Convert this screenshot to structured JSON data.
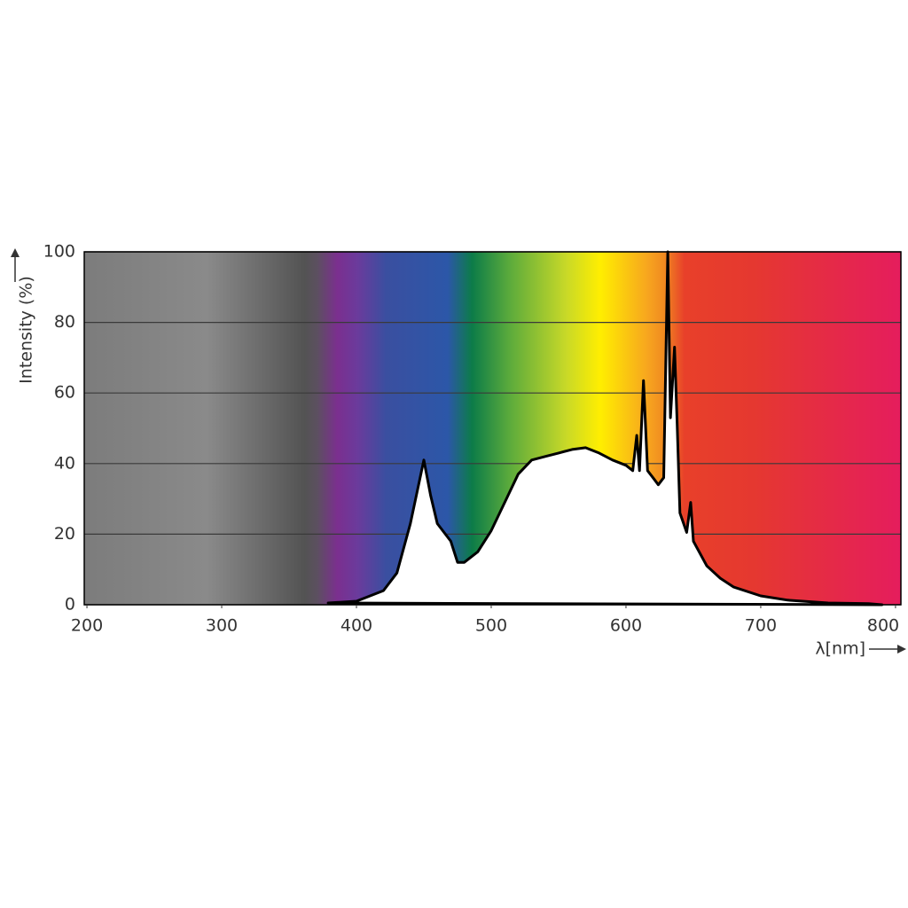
{
  "chart_data": {
    "type": "area",
    "y_label": "Intensity (%)",
    "x_label": "λ[nm]",
    "xlim": [
      198,
      804
    ],
    "ylim": [
      0,
      100
    ],
    "xticks": [
      200,
      300,
      400,
      500,
      600,
      700,
      800
    ],
    "yticks": [
      0,
      20,
      40,
      60,
      80,
      100
    ],
    "grid": true,
    "series": [
      {
        "color": "#000000",
        "x": [
          379,
          400,
          420,
          430,
          440,
          450,
          455,
          460,
          470,
          475,
          480,
          490,
          500,
          510,
          520,
          530,
          540,
          550,
          560,
          570,
          580,
          590,
          600,
          605,
          608,
          610,
          613,
          616,
          620,
          624,
          628,
          631,
          633,
          636,
          638,
          640,
          645,
          648,
          650,
          660,
          670,
          680,
          700,
          720,
          750,
          780,
          790
        ],
        "values": [
          0.5,
          1,
          4,
          9,
          23,
          41,
          31,
          23,
          18,
          12,
          12,
          15,
          21,
          29,
          37,
          41,
          42,
          43,
          44,
          44.5,
          43,
          41,
          39.5,
          38,
          48,
          38,
          63.5,
          38,
          36,
          34,
          36,
          100,
          53,
          73,
          51,
          26,
          20.5,
          29,
          18,
          11,
          7.5,
          5,
          2.5,
          1.3,
          0.5,
          0.3,
          0
        ]
      }
    ]
  }
}
